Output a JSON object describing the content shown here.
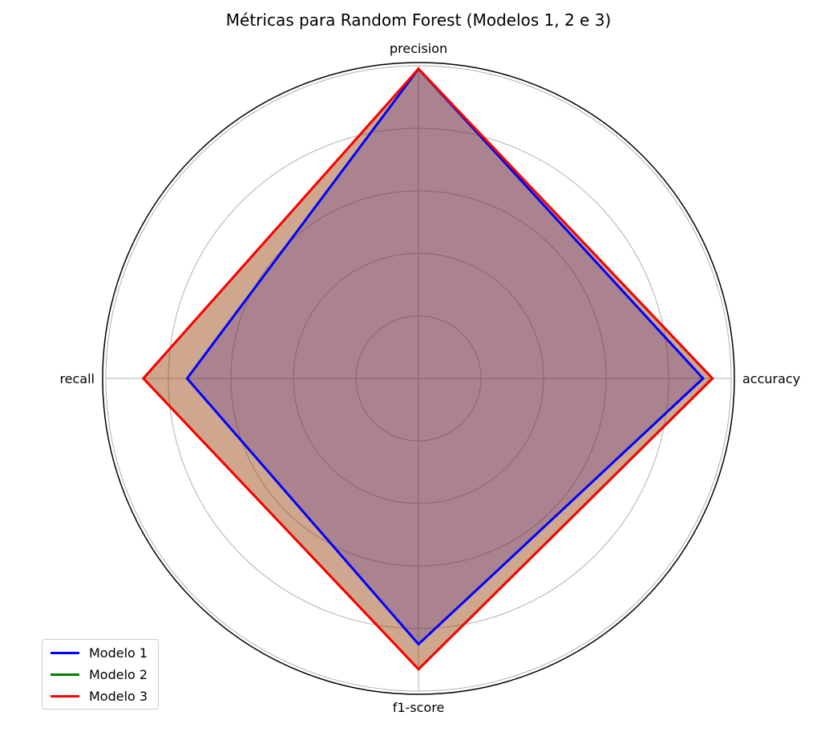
{
  "chart_data": {
    "type": "radar",
    "title": "Métricas para Random Forest (Modelos 1, 2 e 3)",
    "axes": [
      "accuracy",
      "precision",
      "recall",
      "f1-score"
    ],
    "rmax": 1.0,
    "grid_rings": [
      0.2,
      0.4,
      0.6,
      0.8,
      1.0
    ],
    "grid": true,
    "legend_position": "lower-left",
    "series": [
      {
        "name": "Modelo 1",
        "color": "#0000ff",
        "fill": "#0000ff",
        "values": [
          0.91,
          0.99,
          0.74,
          0.85
        ]
      },
      {
        "name": "Modelo 2",
        "color": "#008000",
        "fill": "#008000",
        "values": [
          0.94,
          0.99,
          0.88,
          0.93
        ]
      },
      {
        "name": "Modelo 3",
        "color": "#ff0000",
        "fill": "#ff0000",
        "values": [
          0.94,
          0.99,
          0.88,
          0.93
        ]
      }
    ]
  }
}
